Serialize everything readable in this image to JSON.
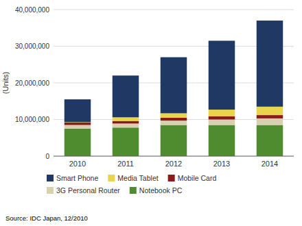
{
  "chart_data": {
    "type": "bar",
    "stacked": true,
    "categories": [
      "2010",
      "2011",
      "2012",
      "2013",
      "2014"
    ],
    "series": [
      {
        "name": "Notebook PC",
        "color": "#4e8c2f",
        "values": [
          7500000,
          7800000,
          8500000,
          8500000,
          8500000
        ]
      },
      {
        "name": "3G Personal Router",
        "color": "#d9d0b0",
        "values": [
          1000000,
          1100000,
          1200000,
          1500000,
          1800000
        ]
      },
      {
        "name": "Mobile Card",
        "color": "#8b1a1a",
        "values": [
          700000,
          700000,
          800000,
          900000,
          900000
        ]
      },
      {
        "name": "Media Tablet",
        "color": "#e8d44d",
        "values": [
          100000,
          1000000,
          1200000,
          1800000,
          2300000
        ]
      },
      {
        "name": "Smart Phone",
        "color": "#1f3864",
        "values": [
          6200000,
          11400000,
          15300000,
          18800000,
          23500000
        ]
      }
    ],
    "ylabel": "(Units)",
    "ylim": [
      0,
      40000000
    ],
    "yticks": [
      0,
      {
        "value": 10000000,
        "label": "10,000,000"
      },
      {
        "value": 20000000,
        "label": "20,000,000"
      },
      {
        "value": 30000000,
        "label": "30,000,000"
      },
      {
        "value": 40000000,
        "label": "40,000,000"
      }
    ],
    "grid": true,
    "legend": "bottom",
    "annotations": [
      "Source: IDC Japan, 12/2010"
    ]
  }
}
